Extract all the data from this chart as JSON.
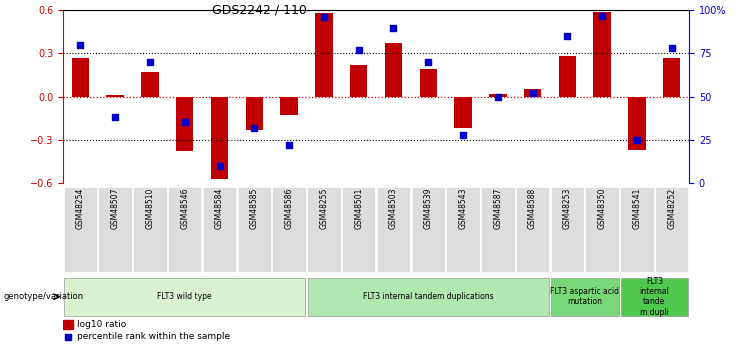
{
  "title": "GDS2242 / 110",
  "samples": [
    "GSM48254",
    "GSM48507",
    "GSM48510",
    "GSM48546",
    "GSM48584",
    "GSM48585",
    "GSM48586",
    "GSM48255",
    "GSM48501",
    "GSM48503",
    "GSM48539",
    "GSM48543",
    "GSM48587",
    "GSM48588",
    "GSM48253",
    "GSM48350",
    "GSM48541",
    "GSM48252"
  ],
  "log10_ratio": [
    0.27,
    0.01,
    0.17,
    -0.38,
    -0.57,
    -0.23,
    -0.13,
    0.58,
    0.22,
    0.37,
    0.19,
    -0.22,
    0.02,
    0.05,
    0.28,
    0.59,
    -0.37,
    0.27
  ],
  "percentile_rank": [
    80,
    38,
    70,
    35,
    10,
    32,
    22,
    96,
    77,
    90,
    70,
    28,
    50,
    52,
    85,
    97,
    25,
    78
  ],
  "groups": [
    {
      "label": "FLT3 wild type",
      "start": 0,
      "end": 7,
      "color": "#d9f2d0"
    },
    {
      "label": "FLT3 internal tandem duplications",
      "start": 7,
      "end": 14,
      "color": "#b0e8b0"
    },
    {
      "label": "FLT3 aspartic acid\nmutation",
      "start": 14,
      "end": 16,
      "color": "#78d878"
    },
    {
      "label": "FLT3\ninternal\ntande\nm dupli",
      "start": 16,
      "end": 18,
      "color": "#50c850"
    }
  ],
  "bar_color": "#c00000",
  "dot_color": "#0000cc",
  "left_ylim": [
    -0.6,
    0.6
  ],
  "right_ylim": [
    0,
    100
  ],
  "left_yticks": [
    -0.6,
    -0.3,
    0.0,
    0.3,
    0.6
  ],
  "right_yticks": [
    0,
    25,
    50,
    75,
    100
  ],
  "right_yticklabels": [
    "0",
    "25",
    "50",
    "75",
    "100%"
  ],
  "dotted_lines_black": [
    -0.3,
    0.3
  ],
  "zero_line_color": "#dd0000",
  "tick_label_color_left": "#cc0000",
  "tick_label_color_right": "#0000cc"
}
